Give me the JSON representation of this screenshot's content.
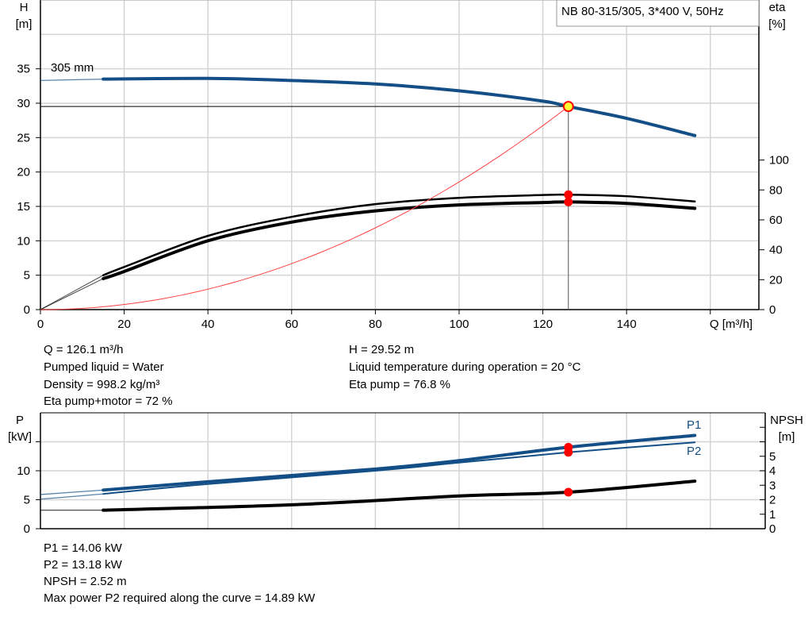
{
  "colors": {
    "head": "#134f86",
    "power": "#134f86",
    "eta": "#000000",
    "npsh": "#000000",
    "system": "#ff4040",
    "duty_point": "#ff0000",
    "duty_fill": "#ffff33"
  },
  "chart_data": [
    {
      "type": "line",
      "title": "NB 80-315/305, 3*400 V, 50Hz",
      "xlabel": "Q [m³/h]",
      "ylabel_left": [
        "H",
        "[m]"
      ],
      "ylabel_right": [
        "eta",
        "[%]"
      ],
      "xlim": [
        0,
        171.6
      ],
      "ylim_left": [
        0,
        45
      ],
      "ylim_right": [
        0,
        207
      ],
      "x_ticks": [
        0,
        20,
        40,
        60,
        80,
        100,
        120,
        140
      ],
      "y_ticks_left": [
        0,
        5,
        10,
        15,
        20,
        25,
        30,
        35
      ],
      "y_ticks_right": [
        0,
        20,
        40,
        60,
        80,
        100
      ],
      "grid": true,
      "curve_label": "305 mm",
      "series": [
        {
          "key": "head",
          "axis": "left",
          "x": [
            0,
            15,
            40,
            60,
            80,
            100,
            120,
            126.1,
            140,
            156.3
          ],
          "y": [
            33.3,
            33.5,
            33.6,
            33.3,
            32.8,
            31.8,
            30.3,
            29.52,
            27.8,
            25.3
          ]
        },
        {
          "key": "eta_pump",
          "axis": "right",
          "x": [
            0,
            15,
            20,
            40,
            60,
            80,
            100,
            120,
            126.1,
            140,
            156.3
          ],
          "y": [
            0,
            23,
            28.5,
            49.3,
            62,
            70.5,
            74.7,
            76.6,
            76.8,
            75.8,
            72.3
          ]
        },
        {
          "key": "eta_pump_motor",
          "axis": "right",
          "x": [
            0,
            15,
            20,
            40,
            60,
            80,
            100,
            120,
            126.1,
            140,
            156.3
          ],
          "y": [
            0,
            20.7,
            25.5,
            46,
            58.5,
            66,
            70,
            71.6,
            72,
            71,
            67.7
          ]
        },
        {
          "key": "system",
          "axis": "left",
          "x": [
            0,
            126.1
          ],
          "y": [
            0,
            29.52
          ],
          "shape": "quadratic"
        }
      ],
      "duty_point": {
        "Q": 126.1,
        "H": 29.52,
        "eta_pump": 76.8,
        "eta_total": 72
      }
    },
    {
      "type": "line",
      "ylabel_left": [
        "P",
        "[kW]"
      ],
      "ylabel_right": [
        "NPSH",
        "[m]"
      ],
      "xlim": [
        0,
        171.6
      ],
      "ylim_left": [
        0,
        20
      ],
      "ylim_right": [
        0,
        8
      ],
      "y_ticks_left": [
        0,
        5,
        10
      ],
      "y_ticks_right": [
        0,
        1,
        2,
        3,
        4,
        5
      ],
      "grid": true,
      "series": [
        {
          "key": "P1",
          "name": "P1",
          "axis": "left",
          "x": [
            0,
            15,
            40,
            80,
            100,
            126.1,
            156.3
          ],
          "y": [
            5.9,
            6.67,
            8.1,
            10.3,
            11.75,
            14.06,
            16.1
          ]
        },
        {
          "key": "P2",
          "name": "P2",
          "axis": "left",
          "x": [
            0,
            15,
            40,
            80,
            100,
            126.1,
            156.3
          ],
          "y": [
            5.1,
            6.0,
            7.7,
            10.0,
            11.4,
            13.18,
            14.9
          ]
        },
        {
          "key": "NPSH",
          "axis": "right",
          "x": [
            0,
            15,
            60,
            100,
            126.1,
            156.3
          ],
          "y": [
            1.28,
            1.28,
            1.65,
            2.26,
            2.52,
            3.28
          ]
        }
      ]
    }
  ],
  "results_top": {
    "left": [
      "Q = 126.1 m³/h",
      "Pumped liquid = Water",
      "Density = 998.2 kg/m³",
      "Eta pump+motor = 72 %"
    ],
    "right": [
      "H = 29.52 m",
      "Liquid temperature during operation = 20 °C",
      "Eta pump = 76.8 %"
    ]
  },
  "results_bottom": [
    "P1 = 14.06 kW",
    "P2 = 13.18 kW",
    "NPSH = 2.52 m",
    "Max power P2 required along the curve = 14.89 kW"
  ]
}
